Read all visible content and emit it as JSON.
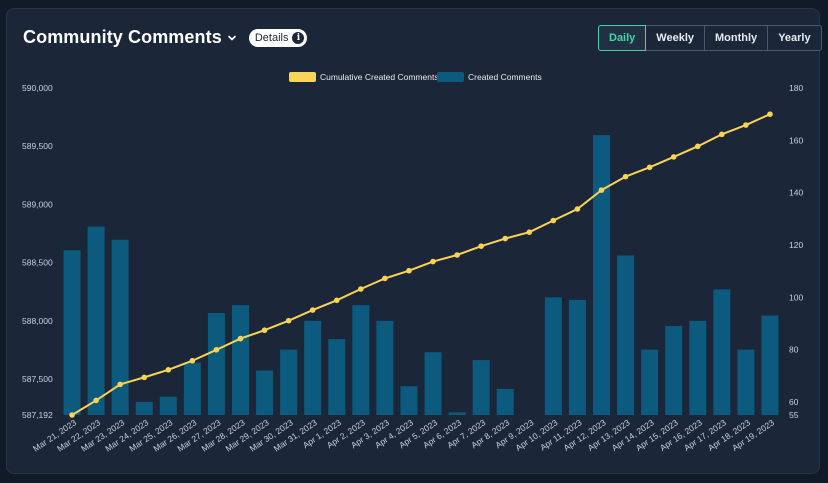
{
  "header": {
    "title": "Community Comments",
    "details_label": "Details",
    "info_glyph": "i"
  },
  "tabs": [
    {
      "label": "Daily",
      "active": true
    },
    {
      "label": "Weekly",
      "active": false
    },
    {
      "label": "Monthly",
      "active": false
    },
    {
      "label": "Yearly",
      "active": false
    }
  ],
  "colors": {
    "bar": "#0c5a7d",
    "line": "#fbd356",
    "accent": "#3fd6a4",
    "tick": "#c8d1dd"
  },
  "chart_data": {
    "type": "bar",
    "categories": [
      "Mar 21, 2023",
      "Mar 22, 2023",
      "Mar 23, 2023",
      "Mar 24, 2023",
      "Mar 25, 2023",
      "Mar 26, 2023",
      "Mar 27, 2023",
      "Mar 28, 2023",
      "Mar 29, 2023",
      "Mar 30, 2023",
      "Mar 31, 2023",
      "Apr 1, 2023",
      "Apr 2, 2023",
      "Apr 3, 2023",
      "Apr 4, 2023",
      "Apr 5, 2023",
      "Apr 6, 2023",
      "Apr 7, 2023",
      "Apr 8, 2023",
      "Apr 9, 2023",
      "Apr 10, 2023",
      "Apr 11, 2023",
      "Apr 12, 2023",
      "Apr 13, 2023",
      "Apr 14, 2023",
      "Apr 15, 2023",
      "Apr 16, 2023",
      "Apr 17, 2023",
      "Apr 18, 2023",
      "Apr 19, 2023"
    ],
    "series": [
      {
        "name": "Created Comments",
        "type": "bar",
        "axis": "right",
        "values": [
          118,
          127,
          122,
          60,
          62,
          75,
          94,
          97,
          72,
          80,
          91,
          84,
          97,
          91,
          66,
          79,
          56,
          76,
          65,
          55,
          100,
          99,
          162,
          116,
          80,
          89,
          91,
          103,
          80,
          93
        ]
      },
      {
        "name": "Cumulative Created Comments",
        "type": "line",
        "axis": "left",
        "values": [
          587192,
          587317,
          587455,
          587515,
          587580,
          587658,
          587752,
          587848,
          587920,
          588002,
          588093,
          588177,
          588274,
          588365,
          588431,
          588510,
          588566,
          588642,
          588707,
          588762,
          588862,
          588961,
          589123,
          589239,
          589319,
          589408,
          589499,
          589602,
          589682,
          589775
        ]
      }
    ],
    "left_axis": {
      "min": 587192,
      "max": 590000,
      "ticks": [
        "587,192",
        "587,500",
        "588,000",
        "588,500",
        "589,000",
        "589,500",
        "590,000"
      ]
    },
    "right_axis": {
      "min": 55,
      "max": 180,
      "ticks": [
        "55",
        "60",
        "80",
        "100",
        "120",
        "140",
        "160",
        "180"
      ]
    },
    "legend": [
      "Cumulative Created Comments",
      "Created Comments"
    ],
    "legend_position": "top-center",
    "grid": false
  }
}
